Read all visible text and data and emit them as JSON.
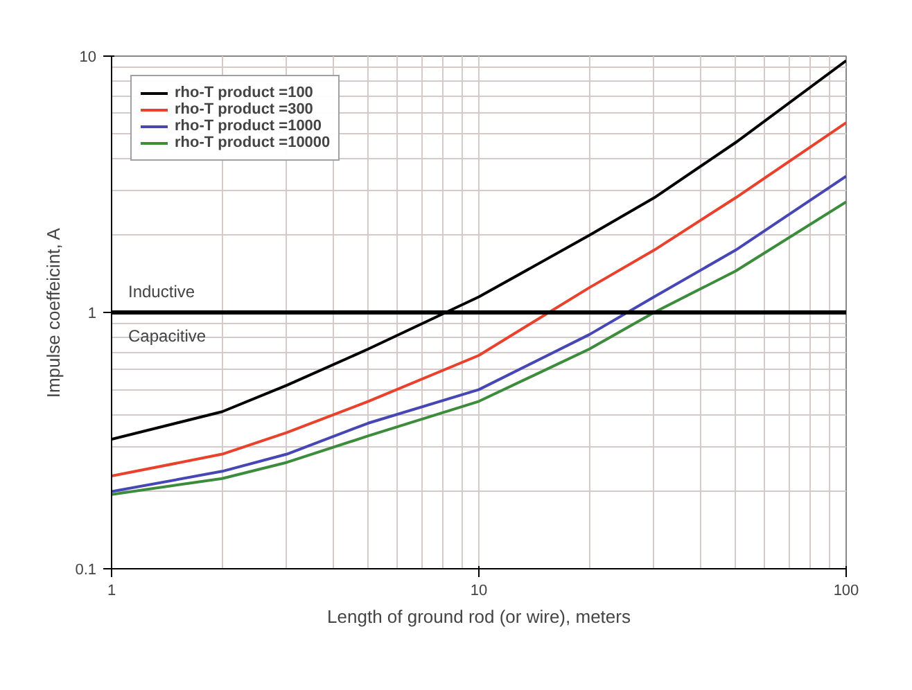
{
  "chart_data": {
    "type": "line",
    "xlabel": "Length of ground rod (or wire), meters",
    "ylabel": "Impulse coeffeicint, A",
    "log": "xy",
    "xlim": [
      1,
      100
    ],
    "ylim": [
      0.1,
      10
    ],
    "xticks": [
      1,
      10,
      100
    ],
    "yticks": [
      0.1,
      1,
      10
    ],
    "grid": true,
    "legend": "top left",
    "marker": "none",
    "line_style": "solid",
    "x": [
      1,
      2,
      3,
      5,
      10,
      20,
      30,
      50,
      100
    ],
    "series": [
      {
        "name": "rho-T product =100",
        "color": "#000000",
        "values": [
          0.32,
          0.41,
          0.52,
          0.72,
          1.15,
          2.0,
          2.8,
          4.6,
          9.6
        ]
      },
      {
        "name": "rho-T product =300",
        "color": "#e8412c",
        "values": [
          0.23,
          0.28,
          0.34,
          0.45,
          0.68,
          1.25,
          1.75,
          2.8,
          5.5
        ]
      },
      {
        "name": "rho-T product =1000",
        "color": "#4646b4",
        "values": [
          0.2,
          0.24,
          0.28,
          0.37,
          0.5,
          0.82,
          1.15,
          1.75,
          3.4
        ]
      },
      {
        "name": "rho-T product =10000",
        "color": "#3c8c3c",
        "values": [
          0.195,
          0.225,
          0.26,
          0.33,
          0.45,
          0.72,
          1.0,
          1.45,
          2.7
        ]
      }
    ],
    "ref_lines": [
      {
        "axis": "y",
        "value": 1,
        "color": "#000000"
      }
    ],
    "annotations": [
      "Inductive",
      "Capacitive"
    ]
  }
}
